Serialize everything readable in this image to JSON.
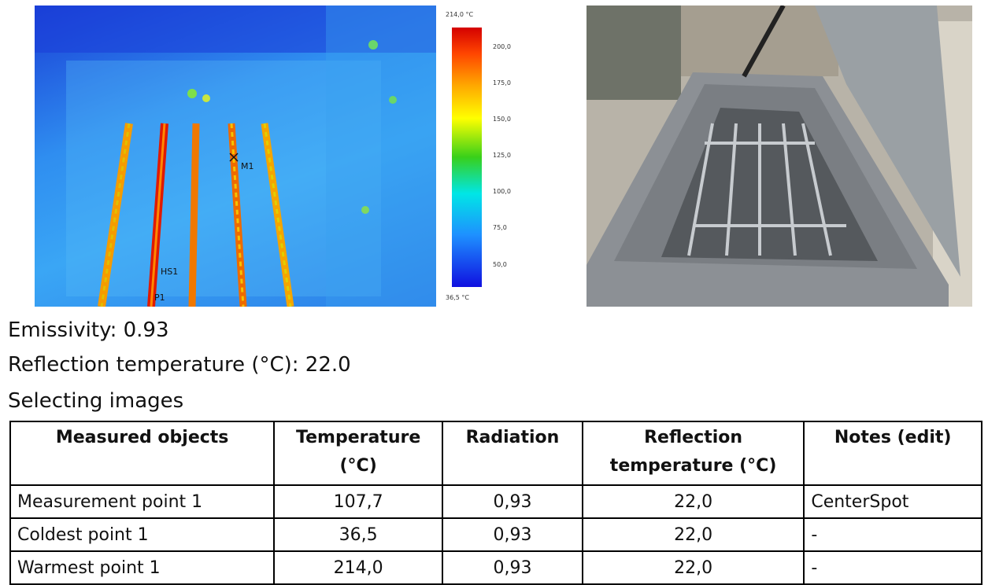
{
  "thermal": {
    "scale_max": "214,0 °C",
    "scale_min": "36,5 °C",
    "ticks": [
      "200,0",
      "175,0",
      "150,0",
      "125,0",
      "100,0",
      "75,0",
      "50,0"
    ],
    "markers": {
      "m1": "M1",
      "hs1": "HS1",
      "p1": "P1"
    }
  },
  "captions": {
    "emissivity": "Emissivity: 0.93",
    "reflection": "Reflection temperature (°C): 22.0",
    "selecting": "Selecting images"
  },
  "table": {
    "headers": [
      "Measured objects",
      "Temperature (°C)",
      "Radiation",
      "Reflection temperature (°C)",
      "Notes (edit)"
    ],
    "rows": [
      [
        "Measurement point 1",
        "107,7",
        "0,93",
        "22,0",
        "CenterSpot"
      ],
      [
        "Coldest point 1",
        "36,5",
        "0,93",
        "22,0",
        "-"
      ],
      [
        "Warmest point 1",
        "214,0",
        "0,93",
        "22,0",
        "-"
      ]
    ]
  }
}
